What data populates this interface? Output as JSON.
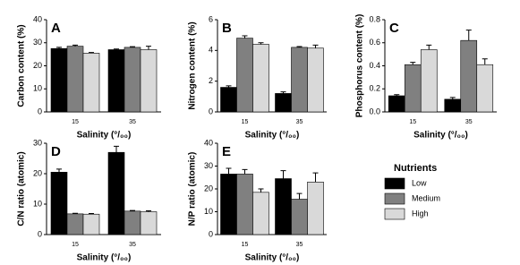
{
  "chart_data": [
    {
      "type": "bar",
      "label": "A",
      "ylabel": "Carbon content (%)",
      "xlabel": "Salinity (°/₀₀)",
      "categories": [
        "15",
        "35"
      ],
      "series": [
        {
          "name": "Low",
          "color": "#000000",
          "values": [
            27.5,
            27
          ],
          "errors": [
            0.5,
            0.3
          ]
        },
        {
          "name": "Medium",
          "color": "#808080",
          "values": [
            28.5,
            28
          ],
          "errors": [
            0.5,
            0.3
          ]
        },
        {
          "name": "High",
          "color": "#d9d9d9",
          "values": [
            25.5,
            27
          ],
          "errors": [
            0.3,
            1.5
          ]
        }
      ],
      "ylim": [
        0,
        40
      ],
      "yticks": [
        0,
        10,
        20,
        30,
        40
      ]
    },
    {
      "type": "bar",
      "label": "B",
      "ylabel": "Nitrogen content (%)",
      "xlabel": "Salinity (°/₀₀)",
      "categories": [
        "15",
        "35"
      ],
      "series": [
        {
          "color": "#000000",
          "values": [
            1.6,
            1.2
          ],
          "errors": [
            0.1,
            0.1
          ]
        },
        {
          "color": "#808080",
          "values": [
            4.8,
            4.2
          ],
          "errors": [
            0.15,
            0.05
          ]
        },
        {
          "color": "#d9d9d9",
          "values": [
            4.4,
            4.15
          ],
          "errors": [
            0.1,
            0.2
          ]
        }
      ],
      "ylim": [
        0,
        6
      ],
      "yticks": [
        0,
        2,
        4,
        6
      ]
    },
    {
      "type": "bar",
      "label": "C",
      "ylabel": "Phosphorus content (%)",
      "xlabel": "Salinity (°/₀₀)",
      "categories": [
        "15",
        "35"
      ],
      "series": [
        {
          "color": "#000000",
          "values": [
            0.14,
            0.11
          ],
          "errors": [
            0.01,
            0.015
          ]
        },
        {
          "color": "#808080",
          "values": [
            0.41,
            0.62
          ],
          "errors": [
            0.02,
            0.09
          ]
        },
        {
          "color": "#d9d9d9",
          "values": [
            0.54,
            0.41
          ],
          "errors": [
            0.04,
            0.05
          ]
        }
      ],
      "ylim": [
        0,
        0.8
      ],
      "yticks": [
        {
          "value": 0,
          "label": "0.0"
        },
        0.2,
        0.4,
        0.6,
        0.8
      ]
    },
    {
      "type": "bar",
      "label": "D",
      "ylabel": "C/N ratio (atomic)",
      "xlabel": "Salinity (°/₀₀)",
      "categories": [
        "15",
        "35"
      ],
      "series": [
        {
          "color": "#000000",
          "values": [
            20.5,
            27
          ],
          "errors": [
            1,
            2
          ]
        },
        {
          "color": "#808080",
          "values": [
            6.8,
            7.7
          ],
          "errors": [
            0.2,
            0.2
          ]
        },
        {
          "color": "#d9d9d9",
          "values": [
            6.7,
            7.5
          ],
          "errors": [
            0.2,
            0.3
          ]
        }
      ],
      "ylim": [
        0,
        30
      ],
      "yticks": [
        0,
        10,
        20,
        30
      ]
    },
    {
      "type": "bar",
      "label": "E",
      "ylabel": "N/P ratio (atomic)",
      "xlabel": "Salinity (°/₀₀)",
      "categories": [
        "15",
        "35"
      ],
      "series": [
        {
          "color": "#000000",
          "values": [
            26.5,
            24.5
          ],
          "errors": [
            2.5,
            3.5
          ]
        },
        {
          "color": "#808080",
          "values": [
            26.5,
            15.5
          ],
          "errors": [
            2,
            2.5
          ]
        },
        {
          "color": "#d9d9d9",
          "values": [
            18.5,
            23
          ],
          "errors": [
            1.5,
            4
          ]
        }
      ],
      "ylim": [
        0,
        40
      ],
      "yticks": [
        0,
        10,
        20,
        30,
        40
      ]
    }
  ],
  "legend": {
    "title": "Nutrients"
  }
}
